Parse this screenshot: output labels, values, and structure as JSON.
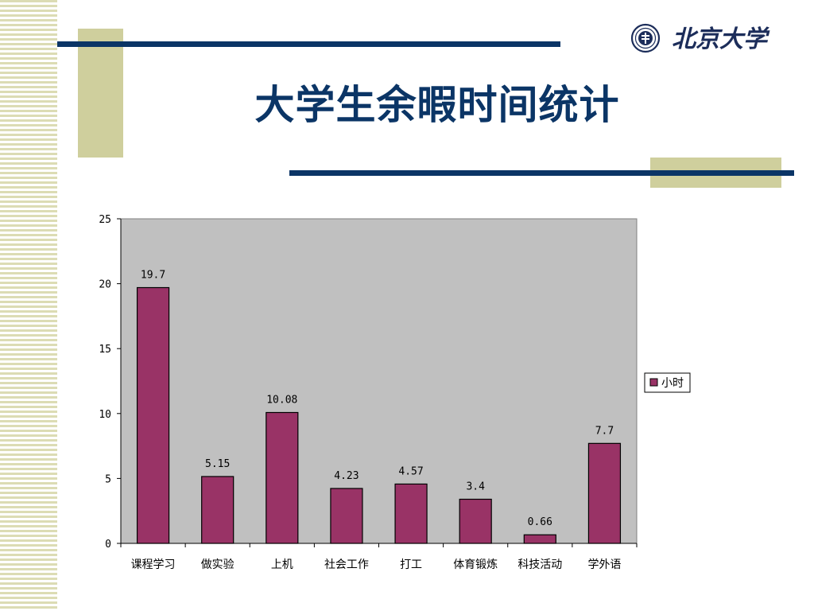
{
  "slide": {
    "title": "大学生余暇时间统计"
  },
  "logo": {
    "icon": "university-seal-icon",
    "text": "北京大学"
  },
  "colors": {
    "bar": "#993366",
    "plot_bg": "#c0c0c0",
    "title": "#0b3566",
    "accent_rule": "#0b3566",
    "accent_block": "#cfcf9d"
  },
  "chart_data": {
    "type": "bar",
    "title": "",
    "xlabel": "",
    "ylabel": "",
    "categories": [
      "课程学习",
      "做实验",
      "上机",
      "社会工作",
      "打工",
      "体育锻炼",
      "科技活动",
      "学外语"
    ],
    "series": [
      {
        "name": "小时",
        "values": [
          19.7,
          5.15,
          10.08,
          4.23,
          4.57,
          3.4,
          0.66,
          7.7
        ],
        "labels": [
          "19.7",
          "5.15",
          "10.08",
          "4.23",
          "4.57",
          "3.4",
          "0.66",
          "7.7"
        ]
      }
    ],
    "ylim": [
      0,
      25
    ],
    "yticks": [
      0,
      5,
      10,
      15,
      20,
      25
    ],
    "grid": false,
    "legend": "right"
  }
}
